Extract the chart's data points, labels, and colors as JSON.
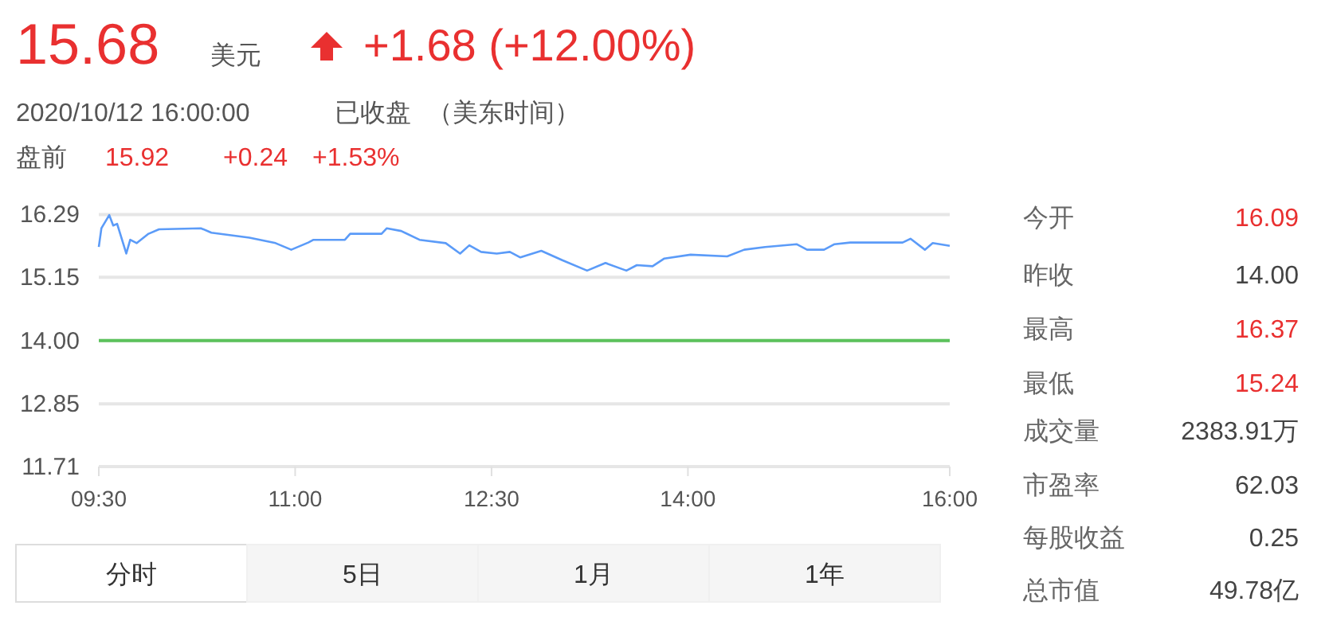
{
  "chart_data": {
    "type": "line",
    "x": [
      9.5,
      9.52,
      9.58,
      9.61,
      9.64,
      9.71,
      9.74,
      9.79,
      9.88,
      9.96,
      10.28,
      10.36,
      10.65,
      10.85,
      10.97,
      11.1,
      11.14,
      11.38,
      11.42,
      11.66,
      11.7,
      11.81,
      11.95,
      12.15,
      12.26,
      12.33,
      12.42,
      12.54,
      12.64,
      12.72,
      12.88,
      13.04,
      13.23,
      13.37,
      13.53,
      13.61,
      13.73,
      13.82,
      14.02,
      14.3,
      14.43,
      14.59,
      14.83,
      14.91,
      15.04,
      15.12,
      15.24,
      15.64,
      15.7,
      15.81,
      15.87,
      16.0
    ],
    "series": [
      {
        "color": "#5b9bf8",
        "values": [
          15.7,
          16.04,
          16.28,
          16.09,
          16.12,
          15.58,
          15.83,
          15.77,
          15.94,
          16.02,
          16.04,
          15.96,
          15.87,
          15.77,
          15.65,
          15.78,
          15.83,
          15.83,
          15.94,
          15.94,
          16.04,
          15.99,
          15.83,
          15.77,
          15.58,
          15.73,
          15.61,
          15.58,
          15.61,
          15.51,
          15.63,
          15.46,
          15.27,
          15.41,
          15.27,
          15.37,
          15.35,
          15.49,
          15.56,
          15.53,
          15.65,
          15.7,
          15.75,
          15.65,
          15.65,
          15.75,
          15.78,
          15.78,
          15.85,
          15.65,
          15.77,
          15.72
        ]
      }
    ],
    "xlim": [
      9.5,
      16.0
    ],
    "ylim": [
      11.71,
      16.29
    ],
    "xticks": [
      {
        "value": 9.5,
        "label": "09:30"
      },
      {
        "value": 11,
        "label": "11:00"
      },
      {
        "value": 12.5,
        "label": "12:30"
      },
      {
        "value": 14,
        "label": "14:00"
      },
      {
        "value": 16,
        "label": "16:00"
      }
    ],
    "yticks": [
      11.71,
      12.85,
      {
        "value": 14,
        "label": "14.00"
      },
      15.15,
      16.29
    ],
    "grid": "y",
    "ref_lines": [
      {
        "axis": "y",
        "value": 14,
        "color": "#5cc25c"
      }
    ],
    "annotations": [
      "15.68",
      "美元",
      "+1.68 (+12.00%)",
      "2020/10/12 16:00:00",
      "已收盘",
      "（美东时间）",
      "盘前",
      "15.92",
      "+0.24",
      "+1.53%",
      "今开",
      "16.09",
      "昨收",
      "14.00",
      "最高",
      "16.37",
      "最低",
      "15.24",
      "成交量",
      "2383.91万",
      "市盈率",
      "62.03",
      "每股收益",
      "0.25",
      "总市值",
      "49.78亿",
      "分时",
      "5日",
      "1月",
      "1年"
    ]
  }
}
